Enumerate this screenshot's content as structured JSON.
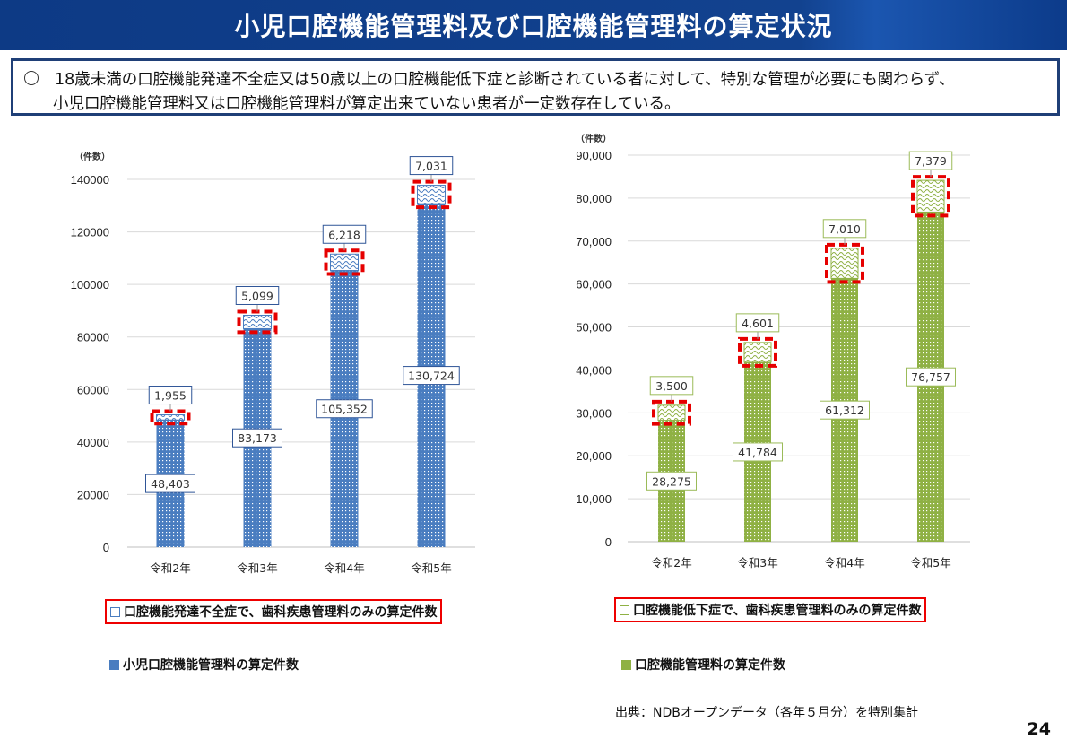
{
  "header": {
    "title": "小児口腔機能管理料及び口腔機能管理料の算定状況"
  },
  "note": {
    "bullet": "○",
    "line1": "18歳未満の口腔機能発達不全症又は50歳以上の口腔機能低下症と診断されている者に対して、特別な管理が必要にも関わらず、",
    "line2": "小児口腔機能管理料又は口腔機能管理料が算定出来ていない患者が一定数存在している。"
  },
  "chart_data": [
    {
      "type": "bar",
      "stacked": true,
      "unit_label": "（件数）",
      "categories": [
        "令和2年",
        "令和3年",
        "令和4年",
        "令和5年"
      ],
      "ylim": [
        0,
        140000
      ],
      "yticks": [
        "0",
        "20000",
        "40000",
        "60000",
        "80000",
        "100000",
        "120000",
        "140000"
      ],
      "grid": true,
      "legend_position": "bottom",
      "series": [
        {
          "name": "小児口腔機能管理料の算定件数",
          "values": [
            48403,
            83173,
            105352,
            130724
          ],
          "labels": [
            "48,403",
            "83,173",
            "105,352",
            "130,724"
          ],
          "color": "#4a7dc0",
          "pattern": "dots"
        },
        {
          "name": "口腔機能発達不全症で、歯科疾患管理料のみの算定件数",
          "values": [
            1955,
            5099,
            6218,
            7031
          ],
          "labels": [
            "1,955",
            "5,099",
            "6,218",
            "7,031"
          ],
          "color": "#4a7dc0",
          "pattern": "waves",
          "highlighted": true
        }
      ]
    },
    {
      "type": "bar",
      "stacked": true,
      "unit_label": "（件数）",
      "categories": [
        "令和2年",
        "令和3年",
        "令和4年",
        "令和5年"
      ],
      "ylim": [
        0,
        90000
      ],
      "yticks": [
        "0",
        "10,000",
        "20,000",
        "30,000",
        "40,000",
        "50,000",
        "60,000",
        "70,000",
        "80,000",
        "90,000"
      ],
      "grid": true,
      "legend_position": "bottom",
      "series": [
        {
          "name": "口腔機能管理料の算定件数",
          "values": [
            28275,
            41784,
            61312,
            76757
          ],
          "labels": [
            "28,275",
            "41,784",
            "61,312",
            "76,757"
          ],
          "color": "#8fb144",
          "pattern": "dots"
        },
        {
          "name": "口腔機能低下症で、歯科疾患管理料のみの算定件数",
          "values": [
            3500,
            4601,
            7010,
            7379
          ],
          "labels": [
            "3,500",
            "4,601",
            "7,010",
            "7,379"
          ],
          "color": "#8fb144",
          "pattern": "waves",
          "highlighted": true
        }
      ]
    }
  ],
  "source": "出典：NDBオープンデータ（各年５月分）を特別集計",
  "page_number": "24",
  "colors": {
    "highlight": "#e60000",
    "header": "#0d3a85"
  }
}
